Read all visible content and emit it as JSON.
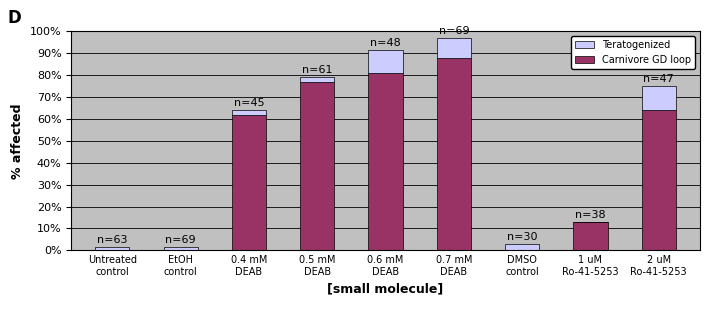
{
  "chart_data": {
    "type": "bar",
    "stacked": true,
    "annotations": [
      "D"
    ],
    "x_label": "[small molecule]",
    "y_label": "% affected",
    "categories": [
      "Untreated control",
      "EtOH control",
      "0.4 mM DEAB",
      "0.5 mM DEAB",
      "0.6 mM DEAB",
      "0.7 mM DEAB",
      "DMSO control",
      "1 uM Ro-41-5253",
      "2 uM Ro-41-5253"
    ],
    "series": [
      {
        "name": "Carnivore GD loop",
        "color": "#993366",
        "values": [
          0,
          0,
          62,
          77,
          81,
          88,
          0,
          13,
          64
        ]
      },
      {
        "name": "Teratogenized",
        "color": "#CCCCFF",
        "values": [
          1.6,
          1.4,
          2,
          2,
          10.5,
          9,
          3,
          0,
          11
        ]
      }
    ],
    "n_labels": [
      "n=63",
      "n=69",
      "n=45",
      "n=61",
      "n=48",
      "n=69",
      "n=30",
      "n=38",
      "n=47"
    ],
    "legend_order": [
      "Teratogenized",
      "Carnivore GD loop"
    ],
    "legend": "upper right",
    "ylim": [
      0,
      100
    ],
    "yticks": [
      {
        "value": 0,
        "label": "0%"
      },
      {
        "value": 10,
        "label": "10%"
      },
      {
        "value": 20,
        "label": "20%"
      },
      {
        "value": 30,
        "label": "30%"
      },
      {
        "value": 40,
        "label": "40%"
      },
      {
        "value": 50,
        "label": "50%"
      },
      {
        "value": 60,
        "label": "60%"
      },
      {
        "value": 70,
        "label": "70%"
      },
      {
        "value": 80,
        "label": "80%"
      },
      {
        "value": 90,
        "label": "90%"
      },
      {
        "value": 100,
        "label": "100%"
      }
    ],
    "grid": true
  }
}
